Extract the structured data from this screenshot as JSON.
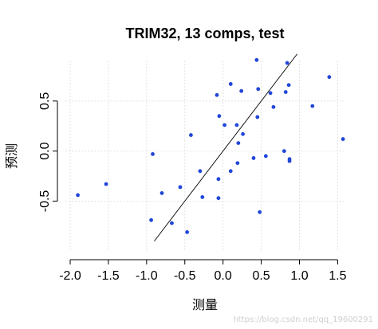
{
  "chart_data": {
    "type": "scatter",
    "title": "TRIM32, 13 comps, test",
    "xlabel": "测量",
    "ylabel": "预测",
    "xlim": [
      -2.0,
      1.6
    ],
    "ylim": [
      -0.95,
      1.0
    ],
    "x_ticks": [
      -2.0,
      -1.5,
      -1.0,
      -0.5,
      0.0,
      0.5,
      1.0,
      1.5
    ],
    "x_tick_labels": [
      "-2.0",
      "-1.5",
      "-1.0",
      "-0.5",
      "0.0",
      "0.5",
      "1.0",
      "1.5"
    ],
    "y_ticks": [
      -0.5,
      0.0,
      0.5
    ],
    "y_tick_labels": [
      "-0.5",
      "0.0",
      "0.5"
    ],
    "grid": true,
    "reference_line": {
      "type": "identity",
      "x_range": [
        -0.9,
        0.97
      ]
    },
    "point_color": "#2146d8",
    "points": [
      {
        "x": -1.9,
        "y": -0.44
      },
      {
        "x": -1.53,
        "y": -0.33
      },
      {
        "x": -0.92,
        "y": -0.03
      },
      {
        "x": -0.94,
        "y": -0.69
      },
      {
        "x": -0.8,
        "y": -0.42
      },
      {
        "x": -0.67,
        "y": -0.72
      },
      {
        "x": -0.56,
        "y": -0.36
      },
      {
        "x": -0.47,
        "y": -0.81
      },
      {
        "x": -0.42,
        "y": 0.16
      },
      {
        "x": -0.3,
        "y": -0.2
      },
      {
        "x": -0.27,
        "y": -0.46
      },
      {
        "x": -0.08,
        "y": 0.56
      },
      {
        "x": -0.05,
        "y": 0.35
      },
      {
        "x": -0.06,
        "y": -0.28
      },
      {
        "x": -0.06,
        "y": -0.47
      },
      {
        "x": 0.02,
        "y": 0.26
      },
      {
        "x": 0.1,
        "y": 0.67
      },
      {
        "x": 0.1,
        "y": -0.2
      },
      {
        "x": 0.18,
        "y": 0.26
      },
      {
        "x": 0.19,
        "y": -0.12
      },
      {
        "x": 0.2,
        "y": 0.08
      },
      {
        "x": 0.24,
        "y": 0.6
      },
      {
        "x": 0.26,
        "y": 0.17
      },
      {
        "x": 0.4,
        "y": -0.07
      },
      {
        "x": 0.44,
        "y": 0.91
      },
      {
        "x": 0.46,
        "y": 0.62
      },
      {
        "x": 0.45,
        "y": 0.34
      },
      {
        "x": 0.48,
        "y": -0.61
      },
      {
        "x": 0.56,
        "y": -0.05
      },
      {
        "x": 0.62,
        "y": 0.58
      },
      {
        "x": 0.66,
        "y": 0.44
      },
      {
        "x": 0.8,
        "y": 0.0
      },
      {
        "x": 0.82,
        "y": 0.59
      },
      {
        "x": 0.84,
        "y": 0.88
      },
      {
        "x": 0.86,
        "y": 0.66
      },
      {
        "x": 0.87,
        "y": -0.08
      },
      {
        "x": 0.87,
        "y": -0.1
      },
      {
        "x": 1.17,
        "y": 0.45
      },
      {
        "x": 1.39,
        "y": 0.74
      },
      {
        "x": 1.57,
        "y": 0.12
      }
    ]
  },
  "watermark": "https://blog.csdn.net/qq_19600291"
}
